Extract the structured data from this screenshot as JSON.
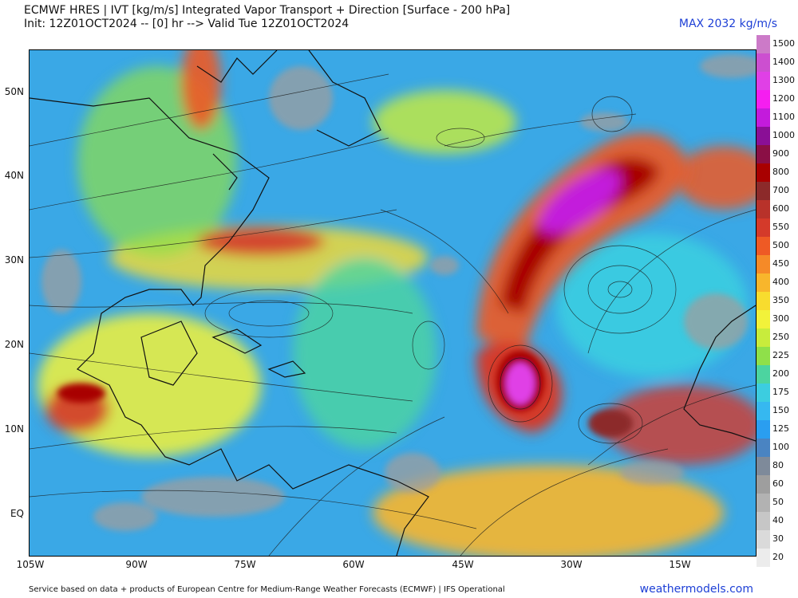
{
  "header": {
    "title_line1": "ECMWF HRES | IVT [kg/m/s] Integrated Vapor Transport + Direction [Surface - 200 hPa]",
    "title_line2": "Init: 12Z01OCT2024 -- [0] hr --> Valid Tue 12Z01OCT2024",
    "max_label": "MAX 2032 kg/m/s"
  },
  "axes": {
    "lat_labels": [
      "50N",
      "40N",
      "30N",
      "20N",
      "10N",
      "EQ"
    ],
    "lon_labels": [
      "105W",
      "90W",
      "75W",
      "60W",
      "45W",
      "30W",
      "15W"
    ]
  },
  "legend": {
    "levels": [
      "1500",
      "1400",
      "1300",
      "1200",
      "1100",
      "1000",
      "900",
      "800",
      "700",
      "600",
      "550",
      "500",
      "450",
      "400",
      "350",
      "300",
      "250",
      "225",
      "200",
      "175",
      "150",
      "125",
      "100",
      "80",
      "60",
      "50",
      "40",
      "30",
      "20"
    ],
    "colors": [
      "#cc7ac8",
      "#cc4fd0",
      "#e040e6",
      "#f51ef0",
      "#c31bdc",
      "#8a0f96",
      "#8a0f45",
      "#a80000",
      "#8c2a2a",
      "#b8322a",
      "#d43a2a",
      "#ee5a25",
      "#f58a28",
      "#f8b62c",
      "#f8dc2e",
      "#f2f23a",
      "#c8ec3c",
      "#8fe04a",
      "#4cd4a0",
      "#3ccde0",
      "#36b8f0",
      "#2a9ef0",
      "#4a84c2",
      "#7e8a9a",
      "#9e9e9e",
      "#b2b2b2",
      "#c6c6c6",
      "#dadada",
      "#ececec"
    ]
  },
  "footer": {
    "source_text": "Service based on data + products of European Centre for Medium-Range Weather Forecasts (ECMWF) | IFS Operational",
    "brand": "weathermodels.com"
  },
  "map": {
    "ocean_color": "#3aa8e6",
    "land_color": "#5cb8e8"
  }
}
